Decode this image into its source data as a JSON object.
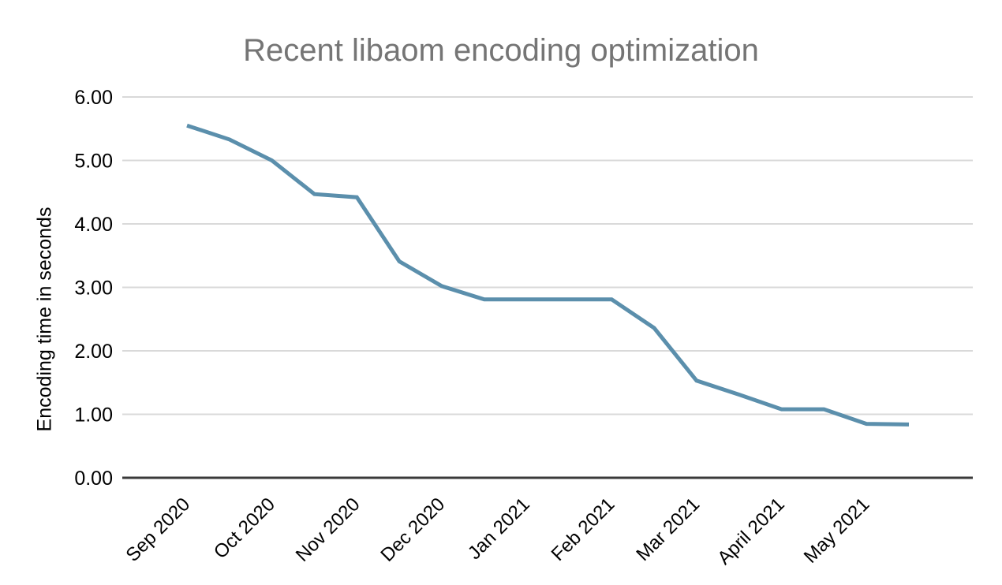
{
  "title": {
    "text": "Recent libaom encoding optimization",
    "color": "#757575"
  },
  "y_axis": {
    "title": "Encoding time in seconds",
    "tick_labels": [
      "0.00",
      "1.00",
      "2.00",
      "3.00",
      "4.00",
      "5.00",
      "6.00"
    ]
  },
  "x_axis": {
    "tick_labels": [
      "Sep 2020",
      "Oct 2020",
      "Nov 2020",
      "Dec 2020",
      "Jan 2021",
      "Feb 2021",
      "Mar 2021",
      "April 2021",
      "May 2021"
    ]
  },
  "chart_data": {
    "type": "line",
    "title": "Recent libaom encoding optimization",
    "xlabel": "",
    "ylabel": "Encoding time in seconds",
    "ylim": [
      0,
      6
    ],
    "y_tick_step": 1,
    "grid": true,
    "legend": "none",
    "line_color": "#5b8fac",
    "categories": [
      "Sep 2020",
      "Oct 2020",
      "Nov 2020",
      "Dec 2020",
      "Jan 2021",
      "Feb 2021",
      "Mar 2021",
      "April 2021",
      "May 2021"
    ],
    "points_per_month": 2,
    "x_month_index": [
      0,
      0.5,
      1,
      1.5,
      2,
      2.5,
      3,
      3.5,
      4,
      4.5,
      5,
      5.5,
      6,
      6.5,
      7,
      7.5,
      8,
      8.5
    ],
    "series": [
      {
        "name": "Encoding time in seconds",
        "values": [
          5.55,
          5.33,
          5.0,
          4.47,
          4.42,
          3.41,
          3.02,
          2.81,
          2.81,
          2.81,
          2.81,
          2.36,
          1.53,
          1.31,
          1.08,
          1.08,
          0.85,
          0.84
        ]
      }
    ]
  },
  "colors": {
    "background": "#ffffff",
    "grid": "#d9d9d9",
    "axis_line": "#3a3a3a",
    "tick_text": "#000000"
  }
}
